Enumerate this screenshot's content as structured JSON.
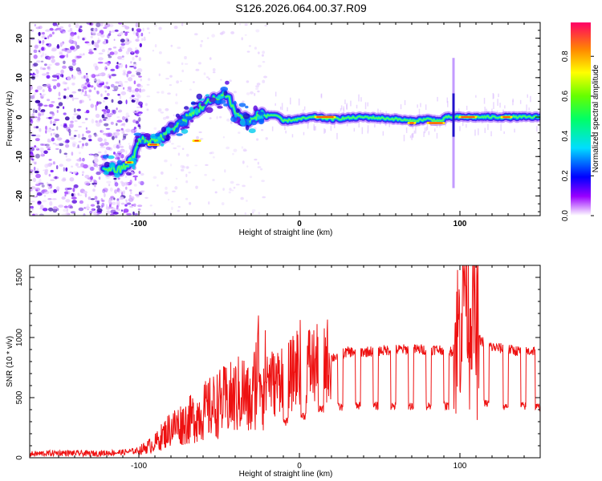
{
  "figure_title": "S126.2026.064.00.37.R09",
  "colors": {
    "snr_line": "#ee1111",
    "axis": "#000000",
    "background": "#ffffff"
  },
  "chart_data": [
    {
      "type": "heatmap",
      "name": "spectrogram",
      "title": "S126.2026.064.00.37.R09",
      "xlabel": "Height of straight line (km)",
      "ylabel": "Frequency (Hz)",
      "xlim": [
        -168,
        150
      ],
      "ylim": [
        -25,
        24
      ],
      "x_ticks": [
        -100,
        0,
        100
      ],
      "y_ticks": [
        -20,
        -10,
        0,
        10,
        20
      ],
      "colorbar": {
        "label": "Normalized spectral amplitude",
        "range": [
          0.0,
          0.97
        ],
        "ticks": [
          0.0,
          0.2,
          0.4,
          0.6,
          0.8
        ],
        "tick_labels": [
          "0.0",
          "0.2",
          "0.4",
          "0.6",
          "0.8"
        ]
      },
      "ridge": {
        "x": [
          -120,
          -112,
          -104,
          -100,
          -92,
          -85,
          -80,
          -72,
          -66,
          -60,
          -55,
          -50,
          -45,
          -40,
          -35,
          -30,
          -25,
          -15,
          -10,
          0,
          10,
          20,
          40,
          60,
          70,
          80,
          88,
          92,
          96,
          110,
          130,
          150
        ],
        "y": [
          -13,
          -13.5,
          -11,
          -6,
          -6,
          -5,
          -3,
          -1,
          1,
          3,
          4,
          5,
          6,
          1,
          0,
          -1,
          0.5,
          0.5,
          -1,
          -0.5,
          0,
          -0.5,
          0,
          -0.5,
          -1,
          -0.5,
          -1,
          0,
          0,
          0,
          0,
          0
        ]
      },
      "bright_segments": [
        {
          "x": [
            -108,
            -104
          ],
          "y": -11.5
        },
        {
          "x": [
            -94,
            -88
          ],
          "y": -7
        },
        {
          "x": [
            -66,
            -62
          ],
          "y": -6
        },
        {
          "x": [
            10,
            22
          ],
          "y": 0
        },
        {
          "x": [
            68,
            72
          ],
          "y": -1.5
        },
        {
          "x": [
            80,
            90
          ],
          "y": -1.5
        },
        {
          "x": [
            100,
            110
          ],
          "y": 0
        },
        {
          "x": [
            126,
            132
          ],
          "y": 0
        }
      ],
      "spike": {
        "x": 96,
        "y_range": [
          -18,
          15
        ]
      }
    },
    {
      "type": "line",
      "name": "snr",
      "xlabel": "Height of straight line (km)",
      "ylabel": "SNR (10 * v/v)",
      "xlim": [
        -168,
        150
      ],
      "ylim": [
        0,
        1600
      ],
      "x_ticks": [
        -100,
        0,
        100
      ],
      "y_ticks": [
        0,
        500,
        1000,
        1500
      ],
      "series": [
        {
          "name": "SNR",
          "x": [
            -168,
            -150,
            -130,
            -110,
            -100,
            -90,
            -80,
            -70,
            -60,
            -50,
            -40,
            -35,
            -30,
            -25,
            -23,
            -20,
            -15,
            -10,
            -5,
            0,
            10,
            20,
            30,
            40,
            50,
            60,
            70,
            80,
            90,
            95,
            100,
            102,
            104,
            106,
            108,
            110,
            120,
            130,
            140,
            150
          ],
          "values": [
            30,
            40,
            35,
            45,
            60,
            120,
            250,
            300,
            380,
            450,
            500,
            550,
            420,
            850,
            600,
            700,
            600,
            750,
            680,
            800,
            760,
            830,
            880,
            880,
            890,
            900,
            900,
            900,
            900,
            880,
            1100,
            1450,
            1600,
            1100,
            1500,
            1000,
            920,
            900,
            880,
            900
          ]
        }
      ],
      "dropouts": [
        {
          "x": [
            -10,
            -7
          ],
          "low": 300
        },
        {
          "x": [
            1,
            4
          ],
          "low": 350
        },
        {
          "x": [
            12,
            15
          ],
          "low": 400
        },
        {
          "x": [
            24,
            27
          ],
          "low": 420
        },
        {
          "x": [
            35,
            38
          ],
          "low": 430
        },
        {
          "x": [
            46,
            49
          ],
          "low": 430
        },
        {
          "x": [
            57,
            60
          ],
          "low": 430
        },
        {
          "x": [
            68,
            71
          ],
          "low": 430
        },
        {
          "x": [
            79,
            82
          ],
          "low": 430
        },
        {
          "x": [
            90,
            93
          ],
          "low": 430
        },
        {
          "x": [
            115,
            118
          ],
          "low": 450
        },
        {
          "x": [
            127,
            130
          ],
          "low": 430
        },
        {
          "x": [
            138,
            141
          ],
          "low": 430
        },
        {
          "x": [
            147,
            150
          ],
          "low": 420
        }
      ]
    }
  ]
}
